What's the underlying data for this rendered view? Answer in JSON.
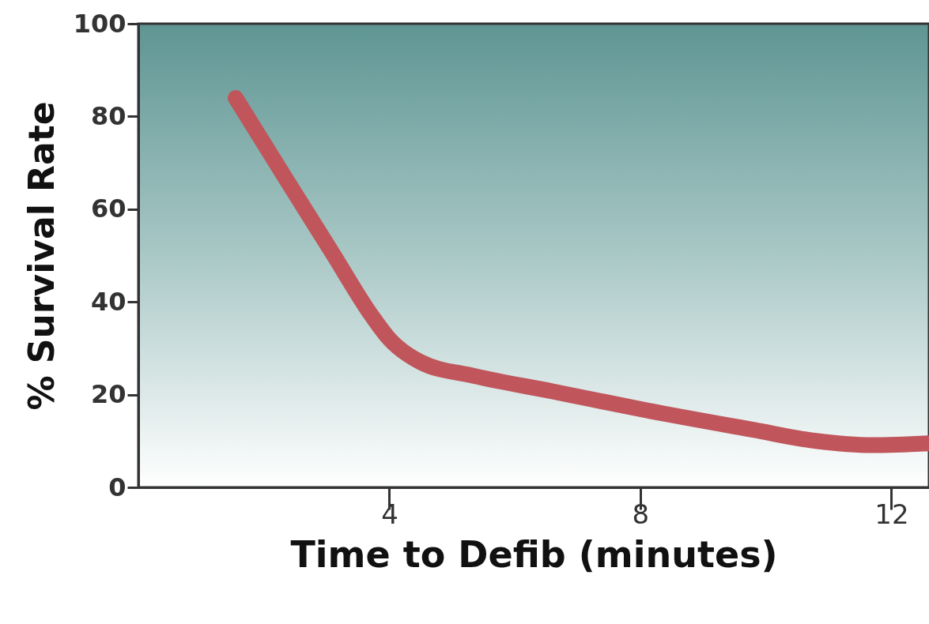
{
  "chart_data": {
    "type": "line",
    "xlabel": "Time to Defib (minutes)",
    "ylabel": "% Survival Rate",
    "x": [
      1.55,
      2.33,
      3.09,
      3.72,
      4.0,
      4.5,
      5.36,
      6.6,
      8.1,
      9.8,
      10.8,
      11.7,
      12.6
    ],
    "series": [
      {
        "color": "#c0565c",
        "values": [
          84,
          67,
          50.6,
          37,
          32,
          27,
          24,
          20.7,
          16.6,
          12.4,
          10,
          9.1,
          9.5
        ]
      }
    ],
    "xlim": [
      0,
      12.6
    ],
    "xticks": [
      4,
      8,
      12
    ],
    "ylim": [
      0,
      100
    ],
    "yticks": [
      0,
      20,
      40,
      60,
      80,
      100
    ],
    "grid": false,
    "marker": "none",
    "line_style": "solid"
  }
}
